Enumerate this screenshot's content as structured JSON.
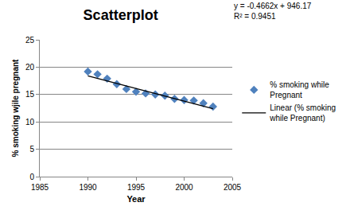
{
  "chart_data": {
    "type": "scatter",
    "title": "Scatterplot",
    "x_label": "Year",
    "y_label": "% smoking wjile pregnant",
    "annotations": [
      "y = -0.4662x + 946.17",
      "R² = 0.9451"
    ],
    "series": [
      {
        "name": "% smoking while Pregnant",
        "type": "scatter",
        "marker": "diamond",
        "color": "#4f81bd",
        "x": [
          1990,
          1991,
          1992,
          1993,
          1994,
          1995,
          1996,
          1997,
          1998,
          1999,
          2000,
          2001,
          2002,
          2003
        ],
        "values": [
          19.2,
          18.7,
          17.9,
          16.9,
          16.0,
          15.5,
          15.2,
          15.0,
          14.8,
          14.2,
          14.0,
          13.9,
          13.4,
          12.8
        ]
      },
      {
        "name": "Linear (% smoking while Pregnant)",
        "type": "line",
        "line_style": "solid",
        "color": "#000000",
        "x": [
          1990,
          2003
        ],
        "values": [
          18.4,
          12.4
        ]
      }
    ],
    "xlim": [
      1985,
      2005
    ],
    "xticks": [
      1985,
      1990,
      1995,
      2000,
      2005
    ],
    "ylim": [
      0,
      25
    ],
    "yticks": [
      0,
      5,
      10,
      15,
      20,
      25
    ],
    "grid": true,
    "legend": "right"
  }
}
